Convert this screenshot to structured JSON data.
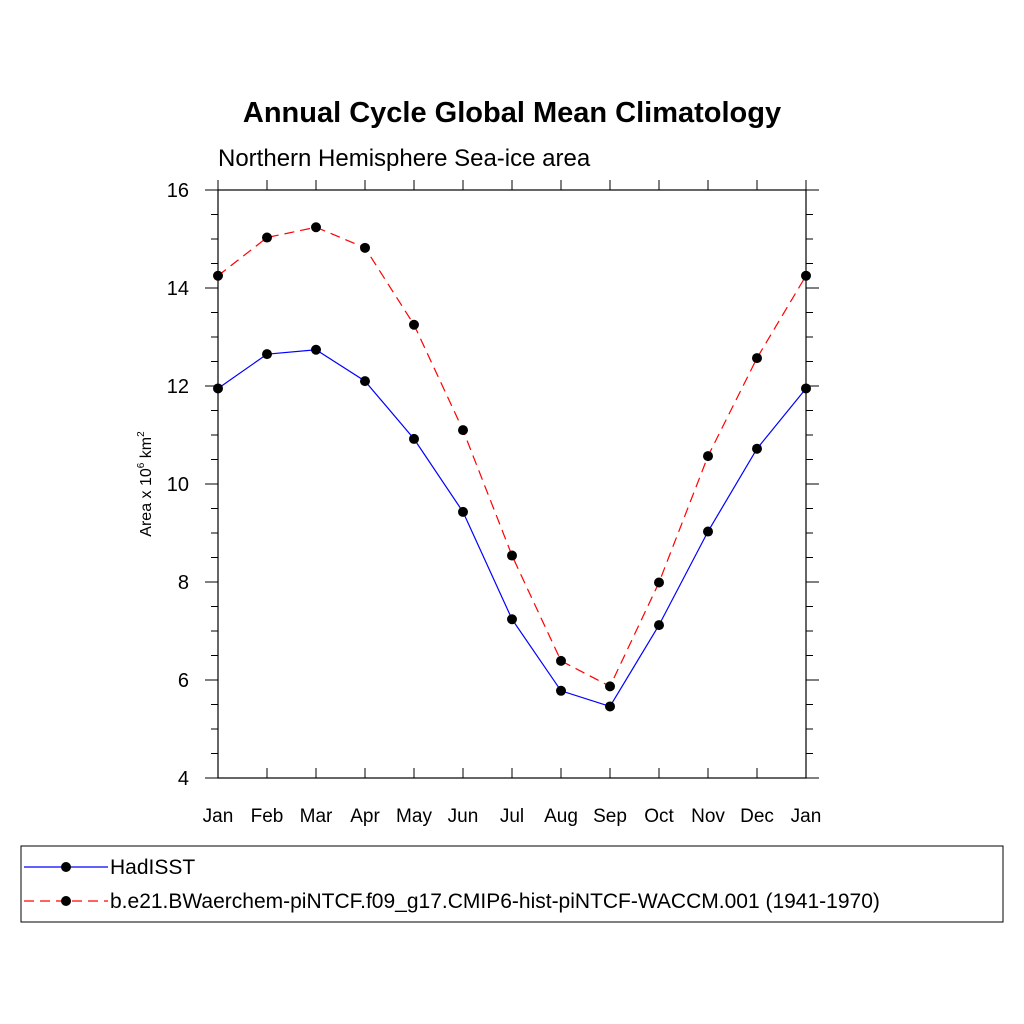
{
  "chart_data": {
    "type": "line",
    "title": "Annual Cycle Global Mean Climatology",
    "subtitle": "Northern Hemisphere Sea-ice area",
    "ylabel": {
      "base": "Area x 10",
      "exp1": "6",
      "unit": " km",
      "exp2": "2"
    },
    "categories": [
      "Jan",
      "Feb",
      "Mar",
      "Apr",
      "May",
      "Jun",
      "Jul",
      "Aug",
      "Sep",
      "Oct",
      "Nov",
      "Dec",
      "Jan"
    ],
    "ylim": [
      4,
      16
    ],
    "yticks": [
      "4",
      "6",
      "8",
      "10",
      "12",
      "14",
      "16"
    ],
    "grid": false,
    "series": [
      {
        "name": "HadISST",
        "color": "#0000ff",
        "dash": "solid",
        "values": [
          11.95,
          12.65,
          12.74,
          12.1,
          10.92,
          9.43,
          7.24,
          5.78,
          5.46,
          7.12,
          9.03,
          10.72,
          11.95
        ]
      },
      {
        "name": "b.e21.BWaerchem-piNTCF.f09_g17.CMIP6-hist-piNTCF-WACCM.001 (1941-1970)",
        "color": "#ff0000",
        "dash": "dashed",
        "values": [
          14.25,
          15.03,
          15.24,
          14.82,
          13.25,
          11.1,
          8.54,
          6.39,
          5.87,
          7.99,
          10.57,
          12.57,
          14.25
        ]
      }
    ],
    "marker": {
      "shape": "circle",
      "color": "#000000"
    },
    "legend_position": "bottom"
  }
}
